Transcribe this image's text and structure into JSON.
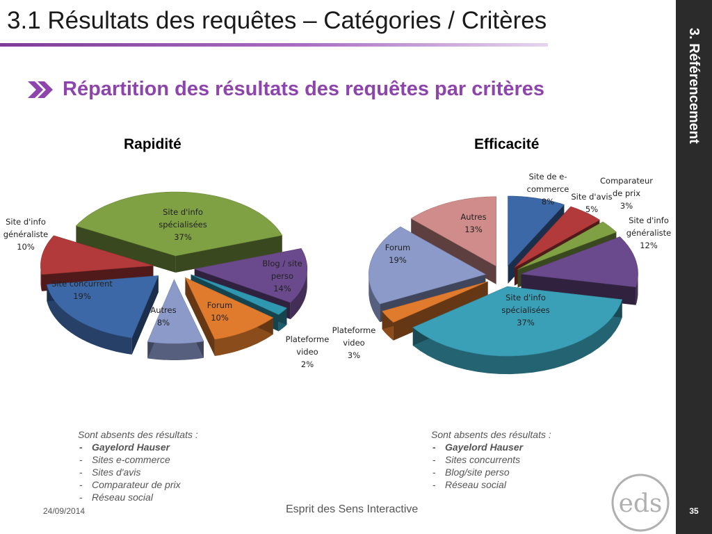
{
  "slide": {
    "title": "3.1 Résultats des requêtes – Catégories / Critères",
    "subtitle": "Répartition des résultats des requêtes par critères",
    "side_label": "3. Référencement",
    "page_number": "35",
    "date": "24/09/2014",
    "footer": "Esprit des Sens Interactive"
  },
  "colors": {
    "accent": "#8e44ad",
    "sidebar": "#2b2b2b"
  },
  "chart_data": [
    {
      "type": "pie",
      "title": "Rapidité",
      "slices": [
        {
          "label": "Site d'info spécialisées",
          "value": 37,
          "color": "#7fa043"
        },
        {
          "label": "Blog / site perso",
          "value": 14,
          "color": "#6a4a8c"
        },
        {
          "label": "Plateforme video",
          "value": 2,
          "color": "#2f97b0"
        },
        {
          "label": "Forum",
          "value": 10,
          "color": "#e07a2c"
        },
        {
          "label": "Autres",
          "value": 8,
          "color": "#8b9ac9"
        },
        {
          "label": "Site concurrent",
          "value": 19,
          "color": "#3d68a8"
        },
        {
          "label": "Site d'info généraliste",
          "value": 10,
          "color": "#b33a3a"
        }
      ]
    },
    {
      "type": "pie",
      "title": "Efficacité",
      "slices": [
        {
          "label": "Site de e-commerce",
          "value": 8,
          "color": "#3d68a8"
        },
        {
          "label": "Site d'avis",
          "value": 5,
          "color": "#b33a3a"
        },
        {
          "label": "Comparateur de prix",
          "value": 3,
          "color": "#7fa043"
        },
        {
          "label": "Site d'info généraliste",
          "value": 12,
          "color": "#6a4a8c"
        },
        {
          "label": "Site d'info spécialisées",
          "value": 37,
          "color": "#3aa0b8"
        },
        {
          "label": "Plateforme video",
          "value": 3,
          "color": "#e07a2c"
        },
        {
          "label": "Forum",
          "value": 19,
          "color": "#8b9ac9"
        },
        {
          "label": "Autres",
          "value": 13,
          "color": "#d08b8b"
        }
      ]
    }
  ],
  "notes_left": {
    "heading": "Sont absents des résultats :",
    "items": [
      "Gayelord Hauser",
      "Sites e-commerce",
      "Sites d'avis",
      "Comparateur de prix",
      "Réseau social"
    ]
  },
  "notes_right": {
    "heading": "Sont absents des résultats :",
    "items": [
      "Gayelord Hauser",
      "Sites concurrents",
      "Blog/site perso",
      "Réseau social"
    ]
  },
  "logo": {
    "text": "eds"
  }
}
